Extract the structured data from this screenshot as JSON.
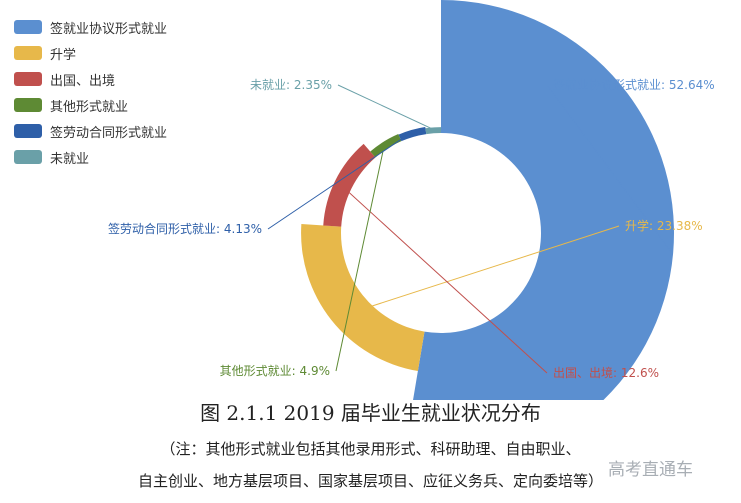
{
  "chart_data": {
    "type": "pie",
    "categories": [
      "签就业协议形式就业",
      "升学",
      "出国、出境",
      "其他形式就业",
      "签劳动合同形式就业",
      "未就业"
    ],
    "values": [
      52.64,
      23.38,
      12.6,
      4.9,
      4.13,
      2.35
    ],
    "labels": [
      "签就业协议形式就业: 52.64%",
      "升学: 23.38%",
      "出国、出境: 12.6%",
      "其他形式就业: 4.9%",
      "签劳动合同形式就业: 4.13%",
      "未就业: 2.35%"
    ],
    "colors": [
      "#5b8fd0",
      "#e7b84a",
      "#c0504d",
      "#5e8a34",
      "#2e5fa8",
      "#6aa0a8"
    ],
    "legend_position": "top-left",
    "title": "图  2.1.1    2019 届毕业生就业状况分布",
    "note_line1": "（注：其他形式就业包括其他录用形式、科研助理、自由职业、",
    "note_line2": "自主创业、地方基层项目、国家基层项目、应征义务兵、定向委培等）"
  },
  "watermark": "高考直通车"
}
